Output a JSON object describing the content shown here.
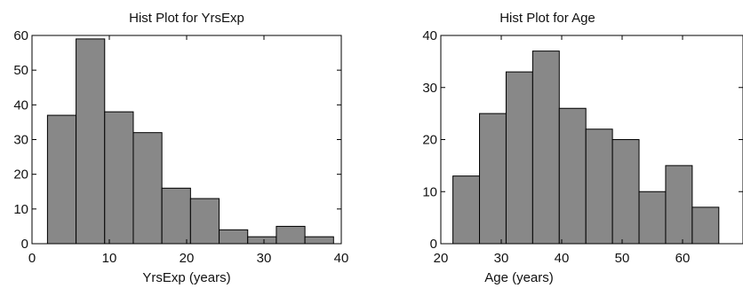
{
  "chart_data": [
    {
      "type": "bar",
      "title": "Hist Plot for YrsExp",
      "xlabel": "YrsExp (years)",
      "ylabel": "",
      "xlim": [
        0,
        40
      ],
      "ylim": [
        0,
        60
      ],
      "xticks": [
        0,
        10,
        20,
        30,
        40
      ],
      "yticks": [
        0,
        10,
        20,
        30,
        40,
        50,
        60
      ],
      "bin_edges": [
        2.0,
        5.7,
        9.4,
        13.1,
        16.8,
        20.5,
        24.2,
        27.9,
        31.6,
        35.3,
        39.0
      ],
      "values": [
        37,
        59,
        38,
        32,
        16,
        13,
        4,
        2,
        5,
        2
      ],
      "grid": false,
      "bar_color": "#888888"
    },
    {
      "type": "bar",
      "title": "Hist Plot for Age",
      "xlabel": "Age (years)",
      "ylabel": "",
      "xlim": [
        20,
        70
      ],
      "ylim": [
        0,
        40
      ],
      "xticks": [
        20,
        30,
        40,
        50,
        60
      ],
      "yticks": [
        0,
        10,
        20,
        30,
        40
      ],
      "bin_edges": [
        22,
        26.4,
        30.8,
        35.2,
        39.6,
        44,
        48.4,
        52.8,
        57.2,
        61.6,
        66
      ],
      "values": [
        13,
        25,
        33,
        37,
        26,
        22,
        20,
        10,
        15,
        7
      ],
      "grid": false,
      "bar_color": "#888888"
    }
  ]
}
